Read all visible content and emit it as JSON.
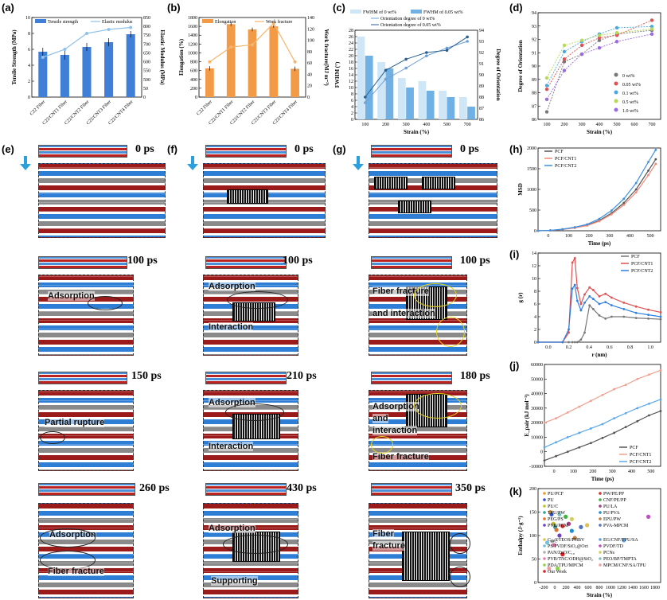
{
  "panels": {
    "a": "(a)",
    "b": "(b)",
    "c": "(c)",
    "d": "(d)",
    "e": "(e)",
    "f": "(f)",
    "g": "(g)",
    "h": "(h)",
    "i": "(i)",
    "j": "(j)",
    "k": "(k)"
  },
  "colors": {
    "blue": "#2f6fd1",
    "lightblue": "#8ec2ea",
    "orange": "#f29a45",
    "red": "#d9473c",
    "gray": "#666666"
  },
  "sim_e": {
    "times": [
      "0 ps",
      "100 ps",
      "150 ps",
      "260 ps"
    ],
    "labels": {
      "adsorption1": "Adsorption",
      "partial": "Partial rupture",
      "adsorption2": "Adsorption",
      "fracture": "Fiber fracture"
    }
  },
  "sim_f": {
    "times": [
      "0 ps",
      "100 ps",
      "210 ps",
      "430 ps"
    ],
    "labels": {
      "adsorption1": "Adsorption",
      "interaction1": "Interaction",
      "adsorption2": "Adsorption",
      "interaction2": "Interaction",
      "adsorption3": "Adsorption",
      "supporting": "Supporting"
    }
  },
  "sim_g": {
    "times": [
      "0 ps",
      "100 ps",
      "180 ps",
      "350 ps"
    ],
    "labels": {
      "fracture1": "Fiber fracture",
      "adsinter": "Adsorption",
      "andinter": "and interaction",
      "adsorption": "Adsorption",
      "andinter2": "and",
      "interaction": "interaction",
      "fracture2": "Fiber fracture",
      "fiber3": "Fiber",
      "fracture3": "fracture"
    }
  },
  "chart_data": [
    {
      "id": "a",
      "type": "bar",
      "categories": [
        "C22 Fiber",
        "C22/CNT1 Fiber",
        "C22/CNT2 Fiber",
        "C22/CNT3 Fiber",
        "C22/CNT4 Fiber"
      ],
      "series": [
        {
          "name": "Tensile strength",
          "values": [
            5.7,
            5.3,
            6.3,
            6.9,
            7.9
          ],
          "errors": [
            0.5,
            0.6,
            0.5,
            0.5,
            0.4
          ]
        },
        {
          "name": "Elastic modulus",
          "values": [
            650,
            690,
            770,
            790,
            800
          ],
          "errors": [
            40,
            50,
            40,
            30,
            25
          ]
        }
      ],
      "ylabel": "Tensile Strength (MPa)",
      "ylabel2": "Elastic Modulus (MPa)",
      "ylim": [
        0,
        10
      ],
      "ylim2": [
        0,
        850
      ],
      "yticks": [
        "0",
        "2",
        "4",
        "6",
        "8",
        "10"
      ],
      "yticks2": [
        "0",
        "50",
        "500",
        "550",
        "600",
        "650",
        "700",
        "750",
        "800",
        "850"
      ]
    },
    {
      "id": "b",
      "type": "bar",
      "categories": [
        "C22 Fiber",
        "C22/CNT1 Fiber",
        "C22/CNT2 Fiber",
        "C22/CNT3 Fiber",
        "C22/CNT4 Fiber"
      ],
      "series": [
        {
          "name": "Elongation",
          "values": [
            650,
            1650,
            1530,
            1600,
            640
          ],
          "errors": [
            50,
            40,
            40,
            30,
            50
          ]
        },
        {
          "name": "Work fracture",
          "values": [
            62,
            88,
            92,
            130,
            62
          ]
        }
      ],
      "ylabel": "Elongation (%)",
      "ylabel2": "Work fracture(MJ m⁻³)",
      "ylim": [
        0,
        1800
      ],
      "ylim2": [
        0,
        140
      ],
      "yticks": [
        "0",
        "200",
        "400",
        "600",
        "800",
        "1000",
        "1200",
        "1400",
        "1600",
        "1800"
      ],
      "yticks2": [
        "0",
        "20",
        "40",
        "60",
        "80",
        "100",
        "120",
        "140"
      ]
    },
    {
      "id": "c",
      "type": "bar",
      "x": [
        100,
        200,
        300,
        400,
        500,
        700
      ],
      "xticks": [
        "100",
        "200",
        "300",
        "400",
        "500",
        "700"
      ],
      "series": [
        {
          "name": "FWHM of 0 wt%",
          "values": [
            26,
            18,
            13,
            12,
            9,
            7
          ]
        },
        {
          "name": "FWHM of 0.05 wt%",
          "values": [
            20,
            16,
            10,
            9,
            7,
            4
          ]
        },
        {
          "name": "Orientation degree of 0 wt%",
          "values": [
            87.5,
            89.6,
            90.6,
            91.7,
            92.4,
            93.0
          ]
        },
        {
          "name": "Orientation degree of 0.05 wt%",
          "values": [
            88.0,
            90.4,
            91.4,
            92.0,
            92.2,
            93.4
          ]
        }
      ],
      "xlabel": "Strain (%)",
      "ylabel": "FWHM (°)",
      "ylabel2": "Degree of Orientation",
      "ylim": [
        0,
        28
      ],
      "ylim2": [
        86,
        94
      ],
      "yticks": [
        "0",
        "2",
        "4",
        "6",
        "8",
        "10",
        "12",
        "14",
        "16",
        "18",
        "20",
        "22",
        "24",
        "26",
        "28"
      ],
      "yticks2": [
        "86",
        "87",
        "88",
        "89",
        "90",
        "91",
        "92",
        "93",
        "94"
      ]
    },
    {
      "id": "d",
      "type": "line",
      "x": [
        100,
        200,
        300,
        400,
        500,
        700
      ],
      "series": [
        {
          "name": "0 wt%",
          "values": [
            86.1,
            90.1,
            90.7,
            91.8,
            92.3,
            92.6
          ]
        },
        {
          "name": "0.05 wt%",
          "values": [
            87.9,
            90.3,
            91.4,
            92.0,
            92.2,
            93.4
          ]
        },
        {
          "name": "0.1 wt%",
          "values": [
            88.2,
            90.9,
            91.7,
            92.3,
            92.8,
            92.9
          ]
        },
        {
          "name": "0.5 wt%",
          "values": [
            88.8,
            91.4,
            91.8,
            92.2,
            92.4,
            92.7
          ]
        },
        {
          "name": "1.0 wt%",
          "values": [
            87.1,
            89.4,
            90.7,
            91.2,
            91.7,
            92.3
          ]
        }
      ],
      "xlabel": "Strain (%)",
      "ylabel": "Degree of Orientation",
      "xlim": [
        50,
        750
      ],
      "ylim": [
        85.5,
        94
      ],
      "xticks": [
        "100",
        "200",
        "300",
        "400",
        "500",
        "600",
        "700"
      ],
      "yticks": [
        "86",
        "87",
        "88",
        "89",
        "90",
        "91",
        "92",
        "93",
        "94"
      ]
    },
    {
      "id": "h",
      "type": "line",
      "x": [
        0,
        50,
        100,
        150,
        200,
        250,
        300,
        350,
        400,
        450,
        480
      ],
      "series": [
        {
          "name": "PCF",
          "values": [
            0,
            9,
            37,
            83,
            148,
            275,
            470,
            740,
            1100,
            1600,
            1900
          ]
        },
        {
          "name": "PCF/CNT1",
          "values": [
            0,
            8,
            34,
            77,
            137,
            255,
            440,
            690,
            1020,
            1480,
            1780
          ]
        },
        {
          "name": "PCF/CNT2",
          "values": [
            0,
            10,
            42,
            95,
            170,
            318,
            540,
            850,
            1270,
            1830,
            2150
          ]
        }
      ],
      "xlabel": "Time (ps)",
      "ylabel": "MSD",
      "xlim": [
        0,
        500
      ],
      "ylim": [
        0,
        2200
      ],
      "xticks": [
        "0",
        "100",
        "200",
        "300",
        "400",
        "500"
      ],
      "yticks": [
        "0",
        "500",
        "1000",
        "1500",
        "2000"
      ]
    },
    {
      "id": "i",
      "type": "line",
      "x": [
        0,
        0.2,
        0.25,
        0.28,
        0.3,
        0.32,
        0.35,
        0.38,
        0.42,
        0.45,
        0.5,
        0.55,
        0.6,
        0.7,
        0.8,
        0.9,
        1.0
      ],
      "series": [
        {
          "name": "PCF",
          "values": [
            0,
            0,
            0,
            0,
            0,
            0,
            0.4,
            1.5,
            5.8,
            5.2,
            4.2,
            3.7,
            4.0,
            4.0,
            3.8,
            3.7,
            3.6
          ]
        },
        {
          "name": "PCF/CNT1",
          "values": [
            0,
            0,
            1.5,
            12.5,
            13.2,
            8.5,
            6.0,
            7.5,
            8.6,
            8.2,
            7.2,
            7.6,
            7.0,
            6.2,
            5.6,
            5.1,
            4.7
          ]
        },
        {
          "name": "PCF/CNT2",
          "values": [
            0,
            0,
            2.0,
            8.4,
            9.0,
            6.5,
            5.0,
            6.2,
            7.2,
            6.8,
            6.0,
            6.3,
            5.8,
            5.2,
            4.6,
            4.3,
            4.0
          ]
        }
      ],
      "xlabel": "r (nm)",
      "ylabel": "g (r)",
      "xlim": [
        0,
        1.0
      ],
      "ylim": [
        0,
        14
      ],
      "xticks": [
        "0.0",
        "0.2",
        "0.4",
        "0.6",
        "0.8",
        "1.0"
      ],
      "yticks": [
        "0",
        "2",
        "4",
        "6",
        "8",
        "10",
        "12",
        "14"
      ]
    },
    {
      "id": "j",
      "type": "line",
      "x": [
        0,
        50,
        100,
        150,
        200,
        250,
        300,
        350,
        400,
        450,
        500
      ],
      "series": [
        {
          "name": "PCF",
          "values": [
            -6000,
            -3000,
            0,
            3000,
            6000,
            9500,
            13000,
            17000,
            21000,
            25000,
            28000
          ]
        },
        {
          "name": "PCF/CNT1",
          "values": [
            20000,
            23000,
            27000,
            31000,
            35000,
            39000,
            43000,
            46000,
            50000,
            53000,
            56000
          ]
        },
        {
          "name": "PCF/CNT2",
          "values": [
            3000,
            6500,
            10000,
            13000,
            16000,
            19000,
            23000,
            26500,
            30000,
            33000,
            36000
          ]
        }
      ],
      "xlabel": "Time (ps)",
      "ylabel": "E_pair (kJ mol⁻¹)",
      "xlim": [
        0,
        500
      ],
      "ylim": [
        -10000,
        60000
      ],
      "xticks": [
        "0",
        "100",
        "200",
        "300",
        "400",
        "500"
      ],
      "yticks": [
        "-10000",
        "0",
        "10000",
        "20000",
        "30000",
        "40000",
        "50000",
        "60000"
      ]
    },
    {
      "id": "k",
      "type": "scatter",
      "xlabel": "Strain (%)",
      "ylabel": "Enthalpy (J·g⁻¹)",
      "xlim": [
        -200,
        1800
      ],
      "ylim": [
        0,
        200
      ],
      "xticks": [
        "-200",
        "0",
        "200",
        "400",
        "600",
        "800",
        "1000",
        "1200",
        "1400",
        "1600",
        "1800"
      ],
      "yticks": [
        "0",
        "50",
        "100",
        "150",
        "200"
      ],
      "legend": [
        "PU/PCF",
        "PU",
        "PU/C",
        "TPU/PW",
        "PEG/PS",
        "PVB/PCM",
        "PW/PE/PP",
        "CNF/PE/PP",
        "PU/LA",
        "PU/PVA",
        "EPU/PW",
        "PVA-MPCM",
        "C₂₂@TEOS/PHBV",
        "PS/PVDF/SiO₂@Oct",
        "PAN/ZnO/C₁₈",
        "PVB/TNC/ODH@SiO₂",
        "PDA/TPU/MPCM",
        "Our Work",
        "EG/CNF/TPU/SA",
        "PVDF/TD",
        "PCNs",
        "PEO/BP/TMPTA",
        "MPCM/CNF/SA/TPU"
      ],
      "points": [
        {
          "x": 0,
          "y": 150
        },
        {
          "x": 20,
          "y": 145
        },
        {
          "x": 50,
          "y": 125
        },
        {
          "x": 80,
          "y": 118
        },
        {
          "x": 100,
          "y": 112
        },
        {
          "x": 150,
          "y": 100
        },
        {
          "x": 200,
          "y": 120
        },
        {
          "x": 250,
          "y": 140
        },
        {
          "x": 300,
          "y": 125
        },
        {
          "x": 350,
          "y": 110
        },
        {
          "x": 400,
          "y": 95
        },
        {
          "x": 500,
          "y": 118
        },
        {
          "x": 600,
          "y": 122
        },
        {
          "x": -50,
          "y": 85
        },
        {
          "x": 30,
          "y": 88
        },
        {
          "x": 60,
          "y": 80
        },
        {
          "x": 120,
          "y": 30
        },
        {
          "x": 200,
          "y": 60
        },
        {
          "x": 1200,
          "y": 90
        },
        {
          "x": 1600,
          "y": 140
        },
        {
          "x": 350,
          "y": 135
        },
        {
          "x": 150,
          "y": 145
        },
        {
          "x": -20,
          "y": 30
        }
      ]
    }
  ]
}
